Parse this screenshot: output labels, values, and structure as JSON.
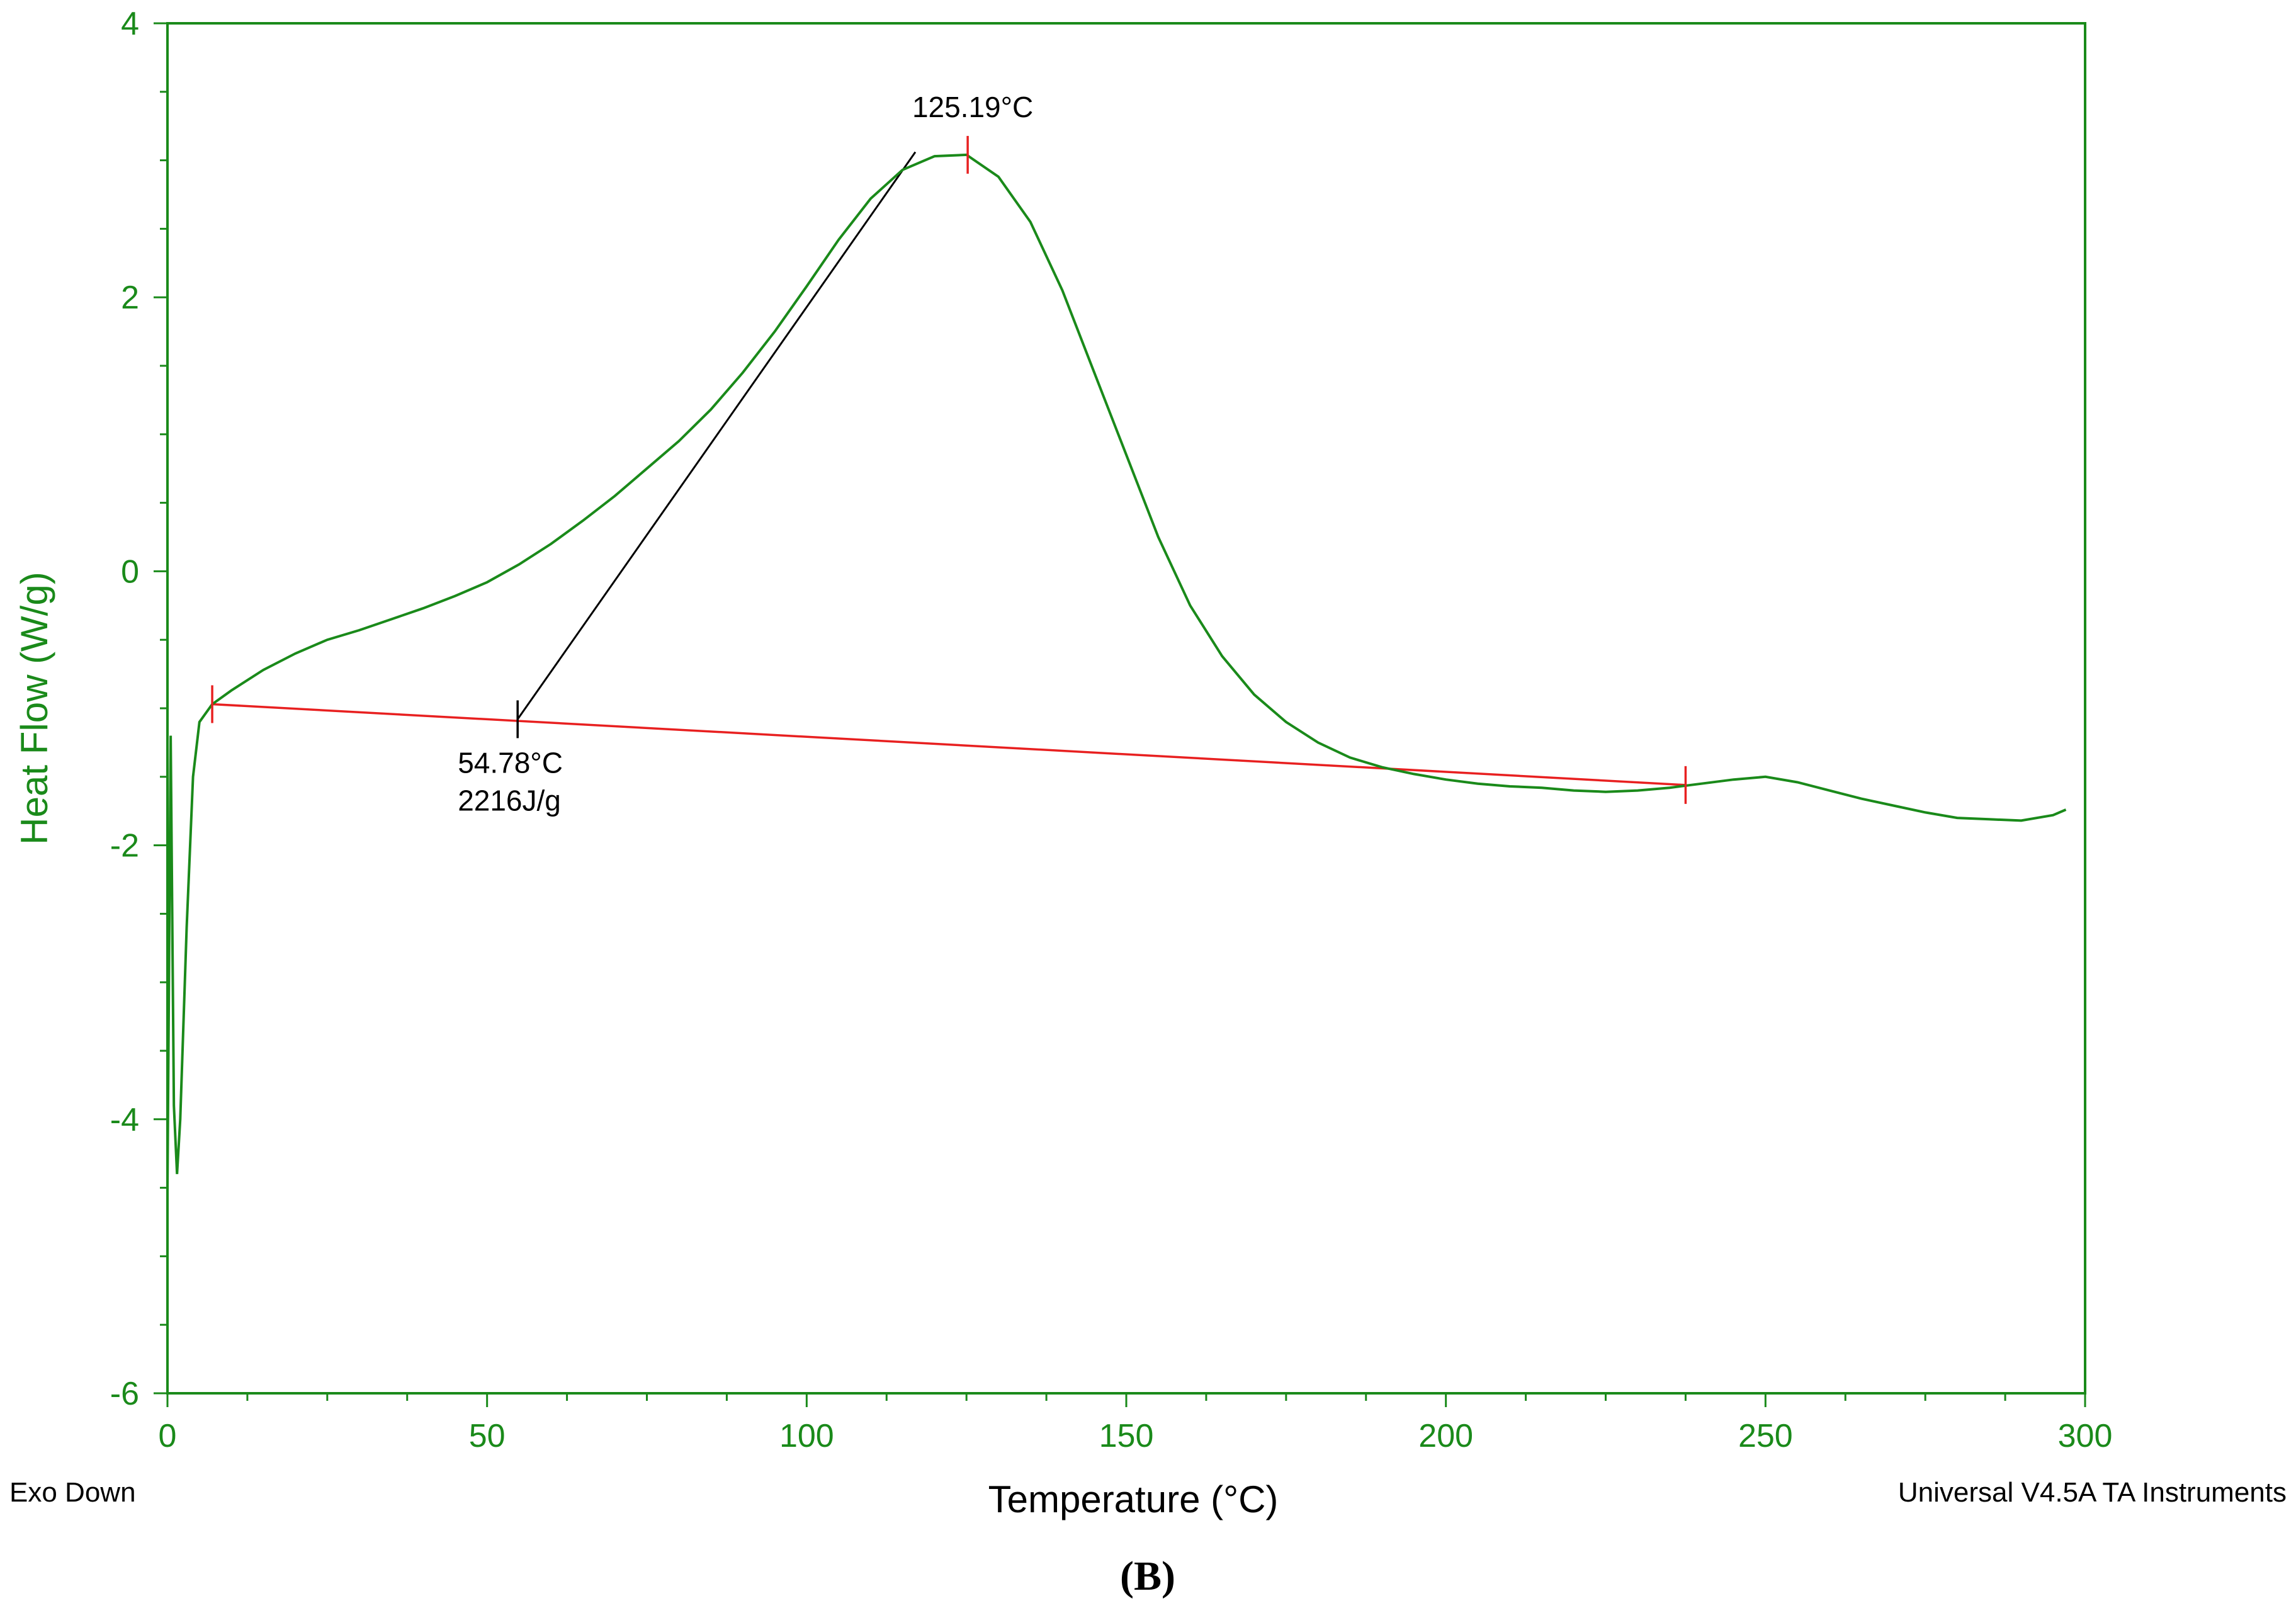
{
  "chart_data": {
    "type": "line",
    "title": "",
    "xlabel": "Temperature (°C)",
    "ylabel": "Heat Flow (W/g)",
    "xlim": [
      0,
      300
    ],
    "ylim": [
      -6,
      4
    ],
    "x_ticks": [
      0,
      50,
      100,
      150,
      200,
      250,
      300
    ],
    "y_ticks": [
      -6,
      -4,
      -2,
      0,
      2,
      4
    ],
    "grid": false,
    "colors": {
      "curve": "#1a8a1a",
      "axis": "#1a8a1a",
      "baseline": "#e82020",
      "tangent": "#000000"
    },
    "series": [
      {
        "name": "Heat Flow",
        "x": [
          0,
          0.5,
          1,
          1.5,
          2,
          3,
          4,
          5,
          7,
          10,
          15,
          20,
          25,
          30,
          35,
          40,
          45,
          50,
          55,
          60,
          65,
          70,
          75,
          80,
          85,
          90,
          95,
          100,
          105,
          110,
          115,
          120,
          125,
          130,
          135,
          140,
          145,
          150,
          155,
          160,
          165,
          170,
          175,
          180,
          185,
          190,
          195,
          200,
          205,
          210,
          215,
          220,
          225,
          230,
          235,
          240,
          245,
          250,
          255,
          260,
          265,
          270,
          275,
          280,
          285,
          290,
          295,
          297
        ],
        "y": [
          -4.5,
          -1.2,
          -3.9,
          -4.4,
          -4.0,
          -2.6,
          -1.5,
          -1.1,
          -0.97,
          -0.87,
          -0.72,
          -0.6,
          -0.5,
          -0.43,
          -0.35,
          -0.27,
          -0.18,
          -0.08,
          0.05,
          0.2,
          0.37,
          0.55,
          0.75,
          0.95,
          1.18,
          1.45,
          1.75,
          2.08,
          2.42,
          2.72,
          2.93,
          3.03,
          3.04,
          2.88,
          2.55,
          2.05,
          1.45,
          0.85,
          0.25,
          -0.25,
          -0.62,
          -0.9,
          -1.1,
          -1.25,
          -1.36,
          -1.43,
          -1.48,
          -1.52,
          -1.55,
          -1.57,
          -1.58,
          -1.6,
          -1.61,
          -1.6,
          -1.58,
          -1.55,
          -1.52,
          -1.5,
          -1.54,
          -1.6,
          -1.66,
          -1.71,
          -1.76,
          -1.8,
          -1.81,
          -1.82,
          -1.78,
          -1.74
        ]
      }
    ],
    "baseline": {
      "from": [
        7,
        -0.97
      ],
      "to": [
        237.5,
        -1.56
      ]
    },
    "tangent": {
      "from": [
        54.78,
        -1.08
      ],
      "to": [
        117,
        3.06
      ]
    },
    "annotations": [
      {
        "text": "125.19°C",
        "x": 125.19,
        "y": 3.04,
        "marker": "peak"
      },
      {
        "text": "54.78°C",
        "x": 54.78,
        "y": -1.08,
        "marker": "onset"
      },
      {
        "text": "2216J/g",
        "x": 54.78,
        "y": -1.08,
        "marker": "none"
      }
    ],
    "markers": [
      {
        "name": "baseline-start",
        "x": 7,
        "y": -0.97
      },
      {
        "name": "baseline-end",
        "x": 237.5,
        "y": -1.56
      }
    ],
    "corner_left": "Exo Down",
    "corner_right": "Universal V4.5A TA Instruments",
    "panel_label": "(B)"
  }
}
